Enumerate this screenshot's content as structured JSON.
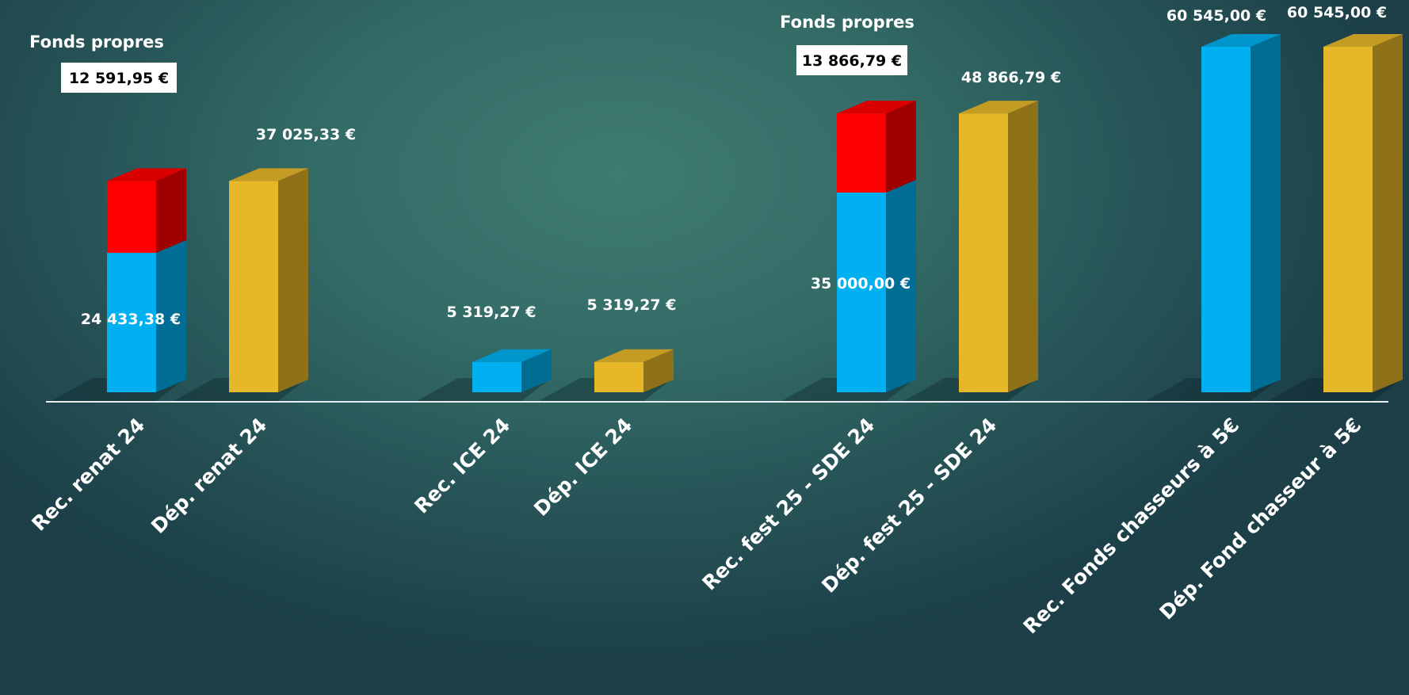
{
  "chart_data": {
    "type": "bar",
    "categories": [
      "Rec. renat 24",
      "Dép. renat 24",
      "Rec. ICE 24",
      "Dép. ICE 24",
      "Rec. fest 25 - SDE 24",
      "Dép. fest 25 - SDE 24",
      "Rec. Fonds chasseurs à 5€",
      "Dép. Fond chasseur à 5€"
    ],
    "series": [
      {
        "values": [
          24433.38,
          0,
          5319.27,
          0,
          35000.0,
          0,
          60545.0,
          0
        ],
        "color": "#00b0f0"
      },
      {
        "values": [
          12591.95,
          0,
          0,
          0,
          13866.79,
          0,
          0,
          0
        ],
        "color": "#ff0000"
      },
      {
        "values": [
          0,
          37025.33,
          0,
          5319.27,
          0,
          48866.79,
          0,
          60545.0
        ],
        "color": "#e6b729"
      }
    ],
    "value_labels": [
      "24 433,38 €",
      "37 025,33 €",
      "5 319,27 €",
      "5 319,27 €",
      "35 000,00 €",
      "48 866,79 €",
      "60 545,00 €",
      "60 545,00 €"
    ],
    "annotations": [
      {
        "title": "Fonds propres",
        "value": "12 591,95 €"
      },
      {
        "title": "Fonds propres",
        "value": "13 866,79 €"
      }
    ],
    "ylim": [
      0,
      60545
    ],
    "grid": false,
    "legend": "none"
  }
}
